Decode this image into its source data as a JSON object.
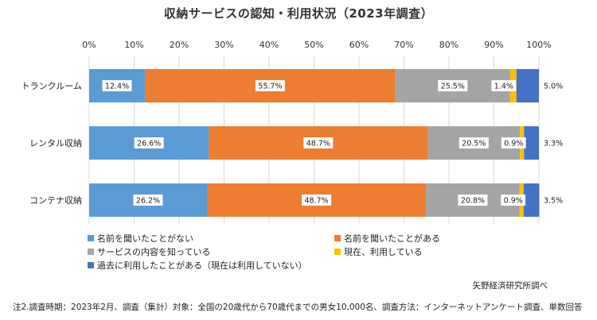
{
  "chart_data": {
    "type": "bar",
    "orientation": "horizontal",
    "stacked": true,
    "title": "収納サービスの認知・利用状況（2023年調査）",
    "xticks": [
      "0%",
      "10%",
      "20%",
      "30%",
      "40%",
      "50%",
      "60%",
      "70%",
      "80%",
      "90%",
      "100%"
    ],
    "xlim": [
      0,
      100
    ],
    "categories": [
      "トランクルーム",
      "レンタル収納",
      "コンテナ収納"
    ],
    "series": [
      {
        "name": "名前を聞いたことがない",
        "color": "#5b9bd5",
        "values": [
          12.4,
          26.6,
          26.2
        ],
        "labels": [
          "12.4%",
          "26.6%",
          "26.2%"
        ]
      },
      {
        "name": "名前を聞いたことがある",
        "color": "#ed7d31",
        "values": [
          55.7,
          48.7,
          48.7
        ],
        "labels": [
          "55.7%",
          "48.7%",
          "48.7%"
        ]
      },
      {
        "name": "サービスの内容を知っている",
        "color": "#a5a5a5",
        "values": [
          25.5,
          20.5,
          20.8
        ],
        "labels": [
          "25.5%",
          "20.5%",
          "20.8%"
        ]
      },
      {
        "name": "現在、利用している",
        "color": "#ffc000",
        "values": [
          1.4,
          0.9,
          0.9
        ],
        "labels": [
          "1.4%",
          "0.9%",
          "0.9%"
        ]
      },
      {
        "name": "過去に利用したことがある（現在は利用していない）",
        "color": "#4472c4",
        "values": [
          5.0,
          3.3,
          3.5
        ],
        "labels": [
          "5.0%",
          "3.3%",
          "3.5%"
        ]
      }
    ],
    "grid": true,
    "legend_position": "bottom"
  },
  "source": "矢野経済研究所調べ",
  "note": "注2.調査時期：2023年2月、調査（集計）対象：全国の20歳代から70歳代までの男女10,000名、調査方法：インターネットアンケート調査、単数回答"
}
